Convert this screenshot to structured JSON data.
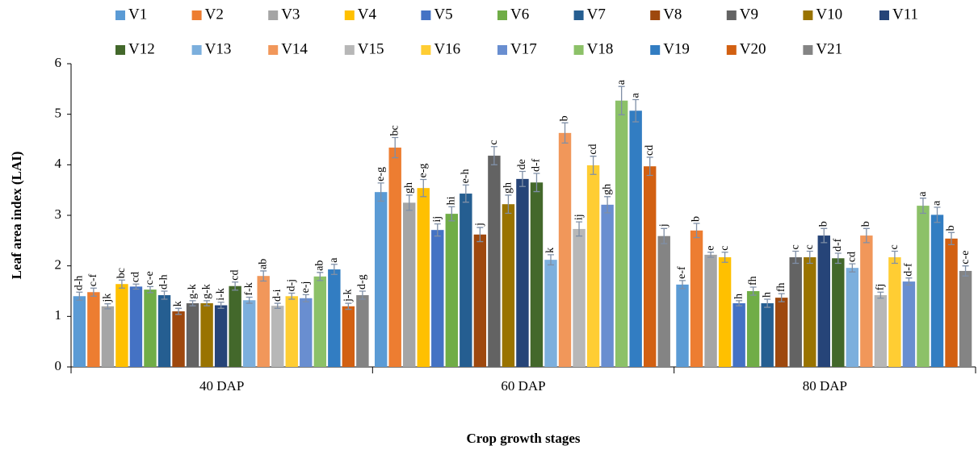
{
  "chart_data": {
    "type": "bar",
    "y_label": "Leaf area index (LAI)",
    "x_label": "Crop growth stages",
    "categories": [
      "40 DAP",
      "60 DAP",
      "80 DAP"
    ],
    "ylim": [
      0,
      6
    ],
    "yticks": [
      0,
      1,
      2,
      3,
      4,
      5,
      6
    ],
    "grid": false,
    "series": [
      {
        "name": "V1",
        "color": "#5B9BD5",
        "values": [
          1.4,
          3.46,
          1.63
        ],
        "errors": [
          0.08,
          0.18,
          0.08
        ],
        "letters": [
          "d-h",
          "e-g",
          "e-f"
        ]
      },
      {
        "name": "V2",
        "color": "#ED7D31",
        "values": [
          1.48,
          4.34,
          2.7
        ],
        "errors": [
          0.08,
          0.2,
          0.14
        ],
        "letters": [
          "c-f",
          "bc",
          "b"
        ]
      },
      {
        "name": "V3",
        "color": "#A5A5A5",
        "values": [
          1.2,
          3.25,
          2.22
        ],
        "errors": [
          0.05,
          0.15,
          0.05
        ],
        "letters": [
          "jk",
          "gh",
          "e"
        ]
      },
      {
        "name": "V4",
        "color": "#FFC000",
        "values": [
          1.64,
          3.54,
          2.17
        ],
        "errors": [
          0.08,
          0.17,
          0.1
        ],
        "letters": [
          "bc",
          "e-g",
          "c"
        ]
      },
      {
        "name": "V5",
        "color": "#4472C4",
        "values": [
          1.59,
          2.71,
          1.26
        ],
        "errors": [
          0.05,
          0.12,
          0.05
        ],
        "letters": [
          "cd",
          "ij",
          "h"
        ]
      },
      {
        "name": "V6",
        "color": "#70AD47",
        "values": [
          1.53,
          3.03,
          1.5
        ],
        "errors": [
          0.06,
          0.14,
          0.08
        ],
        "letters": [
          "c-e",
          "hi",
          "fh"
        ]
      },
      {
        "name": "V7",
        "color": "#255E91",
        "values": [
          1.42,
          3.43,
          1.26
        ],
        "errors": [
          0.08,
          0.17,
          0.08
        ],
        "letters": [
          "d-h",
          "e-h",
          "h"
        ]
      },
      {
        "name": "V8",
        "color": "#9E480E",
        "values": [
          1.1,
          2.62,
          1.37
        ],
        "errors": [
          0.06,
          0.14,
          0.08
        ],
        "letters": [
          "k",
          "j",
          "fh"
        ]
      },
      {
        "name": "V9",
        "color": "#636363",
        "values": [
          1.26,
          4.18,
          2.17
        ],
        "errors": [
          0.05,
          0.18,
          0.12
        ],
        "letters": [
          "g-k",
          "c",
          "c"
        ]
      },
      {
        "name": "V10",
        "color": "#997300",
        "values": [
          1.26,
          3.22,
          2.17
        ],
        "errors": [
          0.05,
          0.18,
          0.12
        ],
        "letters": [
          "g-k",
          "gh",
          "c"
        ]
      },
      {
        "name": "V11",
        "color": "#264478",
        "values": [
          1.22,
          3.72,
          2.6
        ],
        "errors": [
          0.06,
          0.15,
          0.14
        ],
        "letters": [
          "i-k",
          "de",
          "b"
        ]
      },
      {
        "name": "V12",
        "color": "#43682B",
        "values": [
          1.6,
          3.65,
          2.15
        ],
        "errors": [
          0.08,
          0.18,
          0.1
        ],
        "letters": [
          "cd",
          "d-f",
          "d-f"
        ]
      },
      {
        "name": "V13",
        "color": "#7CAFDD",
        "values": [
          1.32,
          2.12,
          1.96
        ],
        "errors": [
          0.06,
          0.1,
          0.08
        ],
        "letters": [
          "f-k",
          "k",
          "cd"
        ]
      },
      {
        "name": "V14",
        "color": "#F1975A",
        "values": [
          1.8,
          4.63,
          2.6
        ],
        "errors": [
          0.1,
          0.2,
          0.14
        ],
        "letters": [
          "ab",
          "b",
          "b"
        ]
      },
      {
        "name": "V15",
        "color": "#B7B7B7",
        "values": [
          1.21,
          2.73,
          1.42
        ],
        "errors": [
          0.05,
          0.14,
          0.06
        ],
        "letters": [
          "d-i",
          "ij",
          "fj"
        ]
      },
      {
        "name": "V16",
        "color": "#FFCD33",
        "values": [
          1.4,
          3.99,
          2.17
        ],
        "errors": [
          0.06,
          0.18,
          0.12
        ],
        "letters": [
          "d-j",
          "cd",
          "c"
        ]
      },
      {
        "name": "V17",
        "color": "#698ED0",
        "values": [
          1.36,
          3.21,
          1.69
        ],
        "errors": [
          0.07,
          0.16,
          0.07
        ],
        "letters": [
          "e-j",
          "gh",
          "d-f"
        ]
      },
      {
        "name": "V18",
        "color": "#8CC168",
        "values": [
          1.79,
          5.27,
          3.19
        ],
        "errors": [
          0.08,
          0.28,
          0.15
        ],
        "letters": [
          "ab",
          "a",
          "a"
        ]
      },
      {
        "name": "V19",
        "color": "#327DC2",
        "values": [
          1.93,
          5.07,
          3.01
        ],
        "errors": [
          0.1,
          0.22,
          0.15
        ],
        "letters": [
          "a",
          "a",
          "a"
        ]
      },
      {
        "name": "V20",
        "color": "#D26012",
        "values": [
          1.2,
          3.97,
          2.54
        ],
        "errors": [
          0.06,
          0.18,
          0.12
        ],
        "letters": [
          "j-k",
          "cd",
          "b"
        ]
      },
      {
        "name": "V21",
        "color": "#848484",
        "values": [
          1.42,
          2.59,
          1.9
        ],
        "errors": [
          0.08,
          0.15,
          0.1
        ],
        "letters": [
          "d-g",
          "j",
          "c-e"
        ]
      }
    ]
  }
}
